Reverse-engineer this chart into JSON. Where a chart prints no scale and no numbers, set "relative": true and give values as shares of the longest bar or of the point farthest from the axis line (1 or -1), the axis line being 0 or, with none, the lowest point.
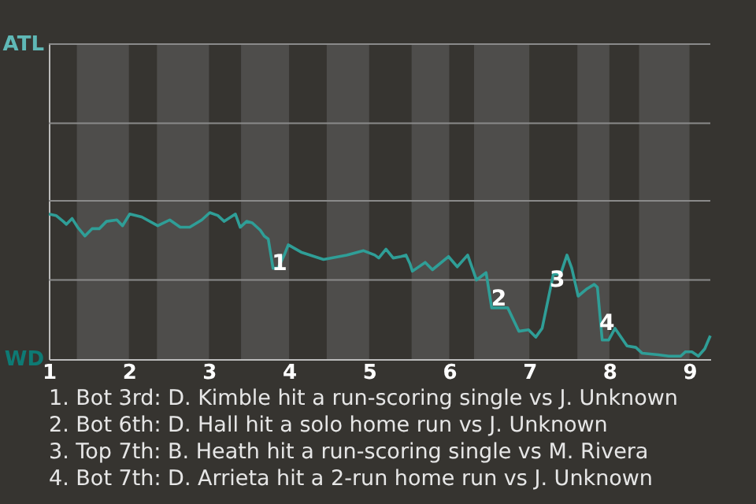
{
  "chart_data": {
    "type": "line",
    "relative": true,
    "x": [
      1.0,
      1.09,
      1.18,
      1.22,
      1.29,
      1.36,
      1.45,
      1.54,
      1.63,
      1.72,
      1.85,
      1.92,
      2.01,
      2.16,
      2.36,
      2.51,
      2.64,
      2.76,
      2.91,
      3.01,
      3.11,
      3.19,
      3.33,
      3.39,
      3.47,
      3.54,
      3.64,
      3.69,
      3.74,
      3.8,
      3.86,
      3.94,
      3.99,
      4.15,
      4.43,
      4.72,
      4.93,
      5.07,
      5.12,
      5.21,
      5.3,
      5.4,
      5.46,
      5.51,
      5.54,
      5.7,
      5.79,
      5.99,
      6.1,
      6.23,
      6.34,
      6.46,
      6.53,
      6.73,
      6.87,
      6.99,
      7.08,
      7.16,
      7.3,
      7.39,
      7.47,
      7.53,
      7.61,
      7.72,
      7.81,
      7.85,
      7.91,
      7.99,
      8.07,
      8.22,
      8.33,
      8.41,
      8.61,
      8.74,
      8.89,
      8.95,
      9.03,
      9.11,
      9.19,
      9.26
    ],
    "series": [
      {
        "color": "#2f9e97",
        "values": [
          0.99,
          0.98,
          0.94,
          0.92,
          0.96,
          0.9,
          0.84,
          0.89,
          0.89,
          0.94,
          0.95,
          0.91,
          0.99,
          0.97,
          0.91,
          0.95,
          0.9,
          0.9,
          0.95,
          1,
          0.98,
          0.94,
          0.99,
          0.9,
          0.94,
          0.93,
          0.88,
          0.84,
          0.82,
          0.62,
          0.62,
          0.71,
          0.78,
          0.73,
          0.68,
          0.71,
          0.74,
          0.71,
          0.69,
          0.75,
          0.69,
          0.7,
          0.71,
          0.65,
          0.6,
          0.66,
          0.61,
          0.7,
          0.63,
          0.71,
          0.54,
          0.59,
          0.35,
          0.35,
          0.19,
          0.2,
          0.15,
          0.21,
          0.58,
          0.58,
          0.71,
          0.62,
          0.43,
          0.48,
          0.51,
          0.49,
          0.13,
          0.13,
          0.21,
          0.09,
          0.08,
          0.04,
          0.03,
          0.02,
          0.02,
          0.05,
          0.05,
          0.02,
          0.07,
          0.16
        ]
      }
    ],
    "xlim": [
      1,
      9.26
    ],
    "xticks": [
      1,
      2,
      3,
      4,
      5,
      6,
      7,
      8,
      9
    ],
    "tick_labels": "x",
    "ref_lines": [
      {
        "axis": "y",
        "value": 0.54,
        "color": "#8a8a8a"
      },
      {
        "axis": "y",
        "value": 1.08,
        "color": "#8a8a8a"
      },
      {
        "axis": "y",
        "value": 1.61,
        "color": "#8a8a8a"
      },
      {
        "axis": "y",
        "value": 2.15,
        "color": "#8a8a8a"
      }
    ],
    "marker": "none",
    "line_style": "solid",
    "bands": [
      {
        "axis": "x",
        "from": 1.35,
        "to": 2.0,
        "color": "#4e4d4b"
      },
      {
        "axis": "x",
        "from": 2.35,
        "to": 3.0,
        "color": "#4e4d4b"
      },
      {
        "axis": "x",
        "from": 3.4,
        "to": 4.0,
        "color": "#4e4d4b"
      },
      {
        "axis": "x",
        "from": 4.47,
        "to": 5.0,
        "color": "#4e4d4b"
      },
      {
        "axis": "x",
        "from": 5.53,
        "to": 6.0,
        "color": "#4e4d4b"
      },
      {
        "axis": "x",
        "from": 6.31,
        "to": 7.0,
        "color": "#4e4d4b"
      },
      {
        "axis": "x",
        "from": 7.6,
        "to": 8.0,
        "color": "#4e4d4b"
      },
      {
        "axis": "x",
        "from": 8.37,
        "to": 9.0,
        "color": "#4e4d4b"
      }
    ],
    "annotations": [
      "ATL",
      "WD",
      {
        "text": "1",
        "x": 3.88,
        "y": 0.65
      },
      {
        "text": "2",
        "x": 6.62,
        "y": 0.41
      },
      {
        "text": "3",
        "x": 7.35,
        "y": 0.54
      },
      {
        "text": "4",
        "x": 7.97,
        "y": 0.24
      },
      "1. Bot 3rd: D. Kimble hit a run-scoring single vs J. Unknown",
      "2. Bot 6th: D. Hall hit a solo home run vs J. Unknown",
      "3. Top 7th: B. Heath hit a run-scoring single vs M. Rivera",
      "4. Bot 7th: D. Arrieta hit a 2-run home run vs J. Unknown"
    ]
  }
}
